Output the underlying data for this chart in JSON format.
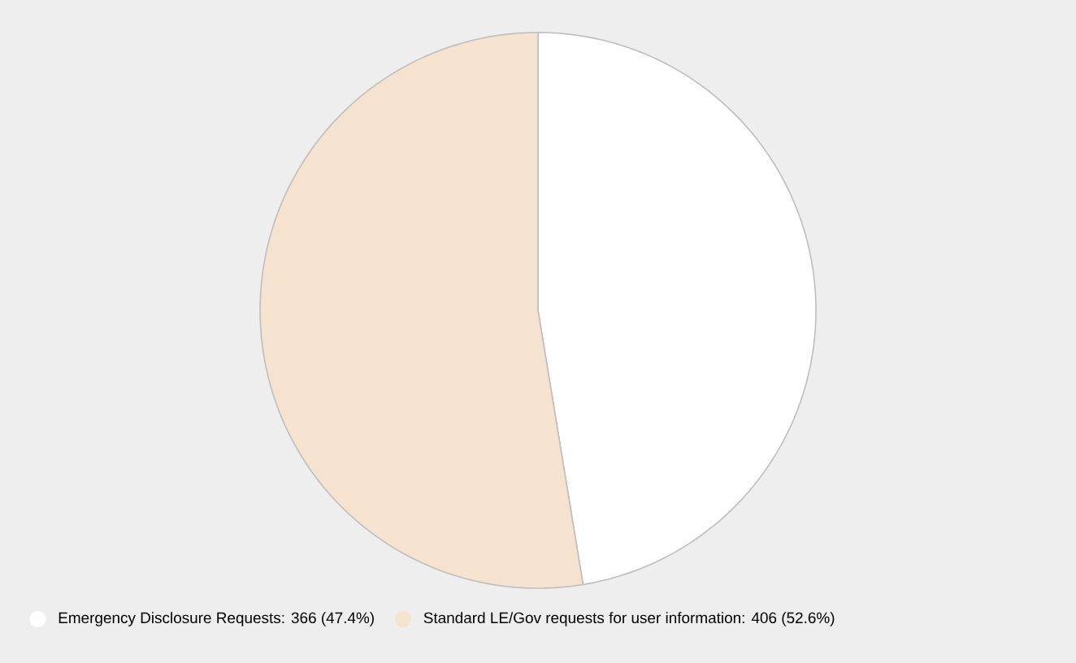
{
  "chart_data": {
    "type": "pie",
    "categories": [
      "Emergency Disclosure Requests: 366 (47.4%)",
      "Standard LE/Gov requests for user information: 406 (52.6%)"
    ],
    "values": [
      366,
      406
    ],
    "colors": [
      "#ffffff",
      "#f5e3d0"
    ],
    "legend": "bottom"
  }
}
